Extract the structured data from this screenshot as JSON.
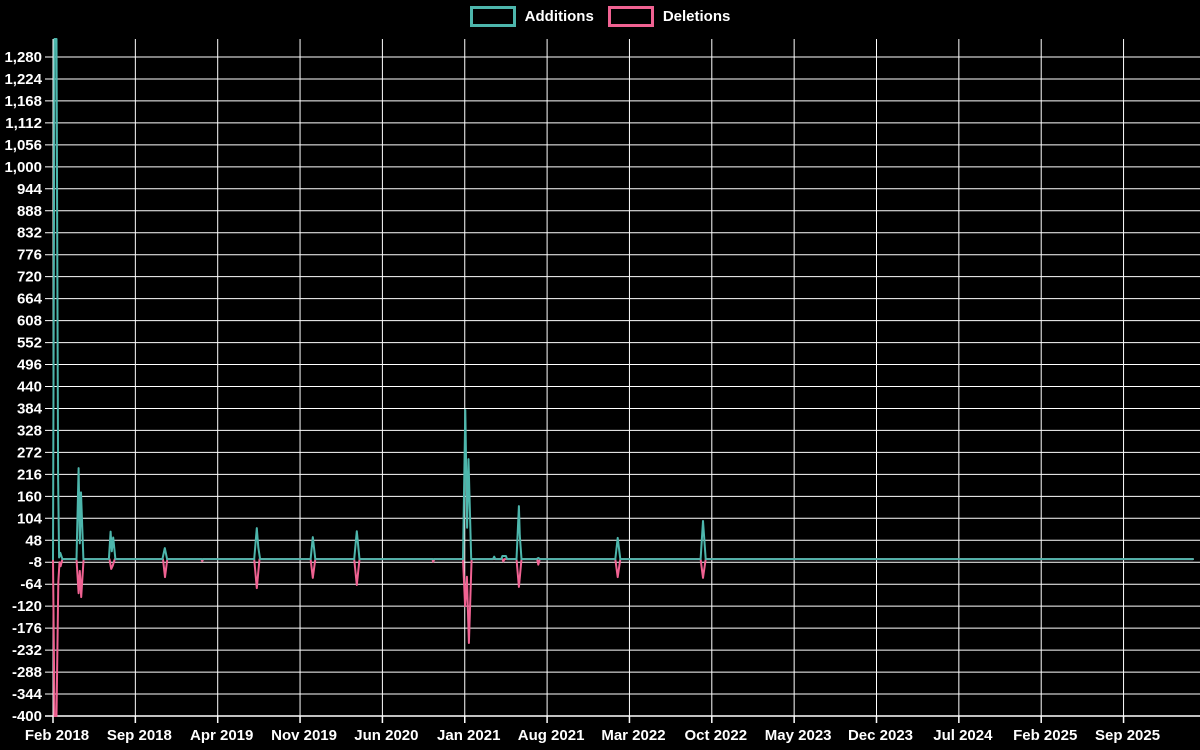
{
  "legend": {
    "additions_label": "Additions",
    "deletions_label": "Deletions"
  },
  "colors": {
    "background": "#000000",
    "grid": "#ffffff",
    "axis_text": "#ffffff",
    "additions": "#4db6ac",
    "deletions": "#f06292"
  },
  "chart_data": {
    "type": "line",
    "title": "",
    "legend_entries": [
      "Additions",
      "Deletions"
    ],
    "grid": true,
    "legend_position": "top-center",
    "x_axis_start": "Feb 2018",
    "x_months_per_tick": 7,
    "x_total_months": 96.9,
    "x_tick_labels": [
      "Feb 2018",
      "Sep 2018",
      "Apr 2019",
      "Nov 2019",
      "Jun 2020",
      "Jan 2021",
      "Aug 2021",
      "Mar 2022",
      "Oct 2022",
      "May 2023",
      "Dec 2023",
      "Jul 2024",
      "Feb 2025",
      "Sep 2025"
    ],
    "y_tick_labels": [
      "-400",
      "-344",
      "-288",
      "-232",
      "-176",
      "-120",
      "-64",
      "-8",
      "48",
      "104",
      "160",
      "216",
      "272",
      "328",
      "384",
      "440",
      "496",
      "552",
      "608",
      "664",
      "720",
      "776",
      "832",
      "888",
      "944",
      "1,000",
      "1,056",
      "1,112",
      "1,168",
      "1,224",
      "1,280"
    ],
    "y_tick_min": -400,
    "y_tick_max": 1280,
    "y_tick_step": 56,
    "y_plot_top_value": 1326,
    "baseline": 0,
    "series": [
      {
        "name": "Additions",
        "color": "#4db6ac",
        "x_unit": "months since Feb 2018",
        "points": [
          [
            0,
            0
          ],
          [
            0.13,
            1326
          ],
          [
            0.3,
            1326
          ],
          [
            0.43,
            210
          ],
          [
            0.52,
            4
          ],
          [
            0.62,
            16
          ],
          [
            0.8,
            0
          ],
          [
            2.0,
            0
          ],
          [
            2.18,
            232
          ],
          [
            2.28,
            40
          ],
          [
            2.38,
            170
          ],
          [
            2.58,
            0
          ],
          [
            4.75,
            0
          ],
          [
            4.9,
            70
          ],
          [
            5.0,
            20
          ],
          [
            5.12,
            55
          ],
          [
            5.3,
            0
          ],
          [
            9.3,
            0
          ],
          [
            9.5,
            28
          ],
          [
            9.7,
            0
          ],
          [
            17.1,
            0
          ],
          [
            17.32,
            79
          ],
          [
            17.45,
            30
          ],
          [
            17.6,
            0
          ],
          [
            21.9,
            0
          ],
          [
            22.08,
            56
          ],
          [
            22.3,
            0
          ],
          [
            25.6,
            0
          ],
          [
            25.82,
            71
          ],
          [
            26.05,
            0
          ],
          [
            34.85,
            0
          ],
          [
            35.05,
            380
          ],
          [
            35.2,
            80
          ],
          [
            35.32,
            255
          ],
          [
            35.55,
            0
          ],
          [
            37.4,
            0
          ],
          [
            37.5,
            6
          ],
          [
            37.6,
            0
          ],
          [
            38.1,
            0
          ],
          [
            38.2,
            8
          ],
          [
            38.5,
            8
          ],
          [
            38.6,
            0
          ],
          [
            39.4,
            0
          ],
          [
            39.6,
            135
          ],
          [
            39.68,
            60
          ],
          [
            39.82,
            0
          ],
          [
            41.1,
            0
          ],
          [
            41.25,
            3
          ],
          [
            41.4,
            0
          ],
          [
            47.8,
            0
          ],
          [
            48.0,
            54
          ],
          [
            48.22,
            0
          ],
          [
            55.05,
            0
          ],
          [
            55.25,
            97
          ],
          [
            55.48,
            0
          ],
          [
            96.9,
            0
          ]
        ]
      },
      {
        "name": "Deletions",
        "color": "#f06292",
        "x_unit": "months since Feb 2018",
        "points": [
          [
            0,
            0
          ],
          [
            0.13,
            -400
          ],
          [
            0.3,
            -400
          ],
          [
            0.45,
            -60
          ],
          [
            0.55,
            -8
          ],
          [
            0.65,
            -18
          ],
          [
            0.8,
            0
          ],
          [
            2.0,
            0
          ],
          [
            2.18,
            -87
          ],
          [
            2.28,
            -30
          ],
          [
            2.4,
            -97
          ],
          [
            2.6,
            0
          ],
          [
            4.8,
            0
          ],
          [
            4.95,
            -25
          ],
          [
            5.08,
            -16
          ],
          [
            5.25,
            0
          ],
          [
            9.35,
            0
          ],
          [
            9.52,
            -46
          ],
          [
            9.72,
            0
          ],
          [
            12.6,
            0
          ],
          [
            12.68,
            -5
          ],
          [
            12.78,
            0
          ],
          [
            17.1,
            0
          ],
          [
            17.32,
            -74
          ],
          [
            17.55,
            0
          ],
          [
            21.9,
            0
          ],
          [
            22.08,
            -48
          ],
          [
            22.3,
            0
          ],
          [
            25.6,
            0
          ],
          [
            25.82,
            -66
          ],
          [
            26.05,
            0
          ],
          [
            32.25,
            0
          ],
          [
            32.32,
            -7
          ],
          [
            32.42,
            0
          ],
          [
            34.85,
            0
          ],
          [
            35.03,
            -120
          ],
          [
            35.18,
            -45
          ],
          [
            35.35,
            -214
          ],
          [
            35.58,
            0
          ],
          [
            38.2,
            0
          ],
          [
            38.28,
            -6
          ],
          [
            38.38,
            0
          ],
          [
            39.4,
            0
          ],
          [
            39.6,
            -71
          ],
          [
            39.82,
            0
          ],
          [
            41.15,
            0
          ],
          [
            41.25,
            -14
          ],
          [
            41.38,
            0
          ],
          [
            47.8,
            0
          ],
          [
            48.0,
            -46
          ],
          [
            48.22,
            0
          ],
          [
            55.05,
            0
          ],
          [
            55.25,
            -48
          ],
          [
            55.48,
            0
          ],
          [
            96.9,
            0
          ]
        ]
      }
    ]
  }
}
